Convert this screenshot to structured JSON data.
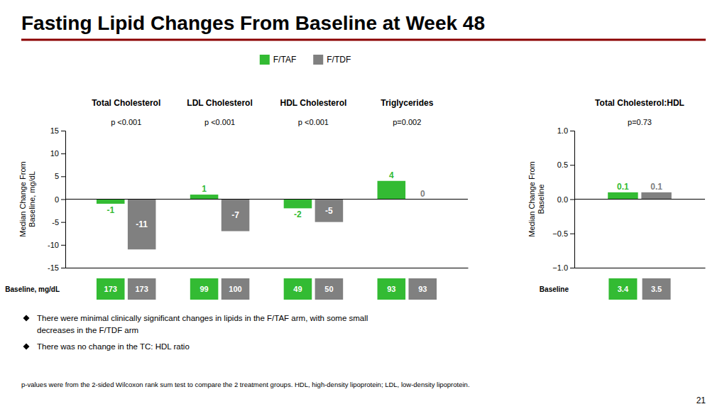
{
  "title": "Fasting Lipid Changes From Baseline at Week 48",
  "chart_data": [
    {
      "type": "bar",
      "categories": [
        "Total Cholesterol",
        "LDL Cholesterol",
        "HDL Cholesterol",
        "Triglycerides"
      ],
      "pvalues": [
        "p <0.001",
        "p <0.001",
        "p <0.001",
        "p=0.002"
      ],
      "series": [
        {
          "name": "F/TAF",
          "color": "#33bb33",
          "values": [
            -1,
            1,
            -2,
            4
          ],
          "baseline": [
            173,
            99,
            49,
            93
          ]
        },
        {
          "name": "F/TDF",
          "color": "#808080",
          "values": [
            -11,
            -7,
            -5,
            0
          ],
          "baseline": [
            173,
            100,
            50,
            93
          ]
        }
      ],
      "ylim": [
        -15,
        15
      ],
      "yticks": [
        -15,
        -10,
        -5,
        0,
        5,
        10,
        15
      ],
      "y_label": "Median Change From\nBaseline, mg/dL",
      "baseline_label": "Baseline, mg/dL",
      "data_labels": true,
      "tick_labels": "y",
      "grid": false,
      "legend": "top"
    },
    {
      "type": "bar",
      "categories": [
        "Total Cholesterol:HDL"
      ],
      "pvalues": [
        "p=0.73"
      ],
      "series": [
        {
          "color": "#33bb33",
          "values": [
            0.1
          ],
          "baseline": [
            3.4
          ]
        },
        {
          "color": "#808080",
          "values": [
            0.1
          ],
          "baseline": [
            3.5
          ]
        }
      ],
      "ylim": [
        -1,
        1
      ],
      "yticks": [
        {
          "value": -1,
          "label": "−1.0"
        },
        {
          "value": -0.5,
          "label": "−0.5"
        },
        {
          "value": 0,
          "label": "0.0"
        },
        {
          "value": 0.5,
          "label": "0.5"
        },
        {
          "value": 1,
          "label": "1.0"
        }
      ],
      "y_label": "Median Change From\nBaseline",
      "baseline_label": "Baseline",
      "data_labels": true,
      "tick_labels": "y",
      "grid": false
    }
  ],
  "footnotes": [
    [
      "There were minimal clinically significant changes in lipids in the F/TAF arm, with some small",
      "decreases in the F/TDF arm"
    ],
    [
      "There was no change in the TC: HDL ratio"
    ]
  ],
  "footer": "p-values were from the 2-sided Wilcoxon rank sum test to compare the 2 treatment groups. HDL, high-density lipoprotein; LDL, low-density lipoprotein.",
  "page_number": "21"
}
